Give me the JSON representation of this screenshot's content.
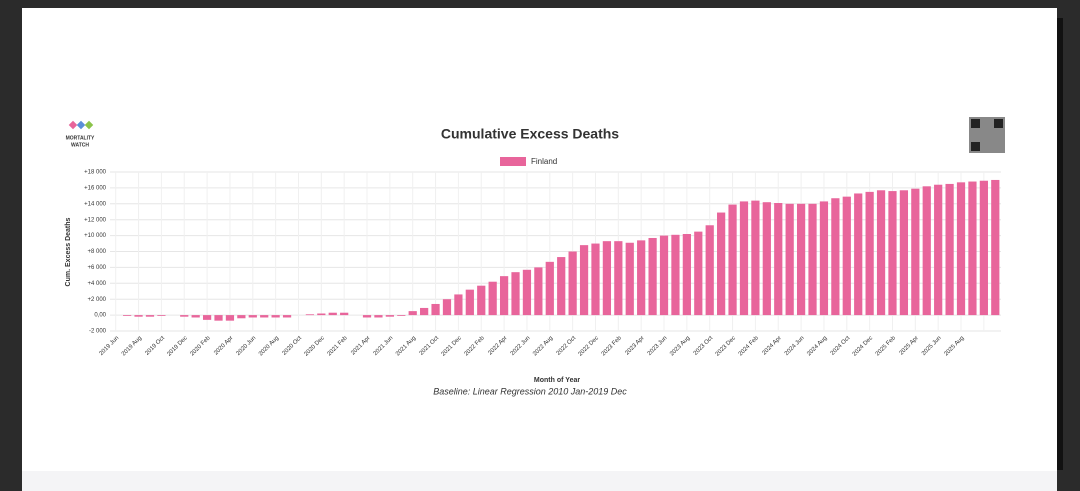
{
  "chart_data": {
    "type": "bar",
    "title": "Cumulative Excess Deaths",
    "logo_text": [
      "MORTALITY",
      "WATCH"
    ],
    "x_label": "Month of Year",
    "y_label": "Cum. Excess Deaths",
    "caption": "Baseline: Linear Regression 2010 Jan-2019 Dec",
    "categories": [
      "2019 Jun",
      null,
      "2019 Aug",
      null,
      "2019 Oct",
      null,
      "2019 Dec",
      null,
      "2020 Feb",
      null,
      "2020 Apr",
      null,
      "2020 Jun",
      null,
      "2020 Aug",
      null,
      "2020 Oct",
      null,
      "2020 Dec",
      null,
      "2021 Feb",
      null,
      "2021 Apr",
      null,
      "2021 Jun",
      null,
      "2021 Aug",
      null,
      "2021 Oct",
      null,
      "2021 Dec",
      null,
      "2022 Feb",
      null,
      "2022 Apr",
      null,
      "2022 Jun",
      null,
      "2022 Aug",
      null,
      "2022 Oct",
      null,
      "2022 Dec",
      null,
      "2023 Feb",
      null,
      "2023 Apr",
      null,
      "2023 Jun",
      null,
      "2023 Aug",
      null,
      "2023 Oct",
      null,
      "2023 Dec",
      null,
      "2024 Feb",
      null,
      "2024 Apr",
      null,
      "2024 Jun",
      null,
      "2024 Aug",
      null,
      "2024 Oct",
      null,
      "2024 Dec",
      null,
      "2025 Feb",
      null,
      "2025 Apr",
      null,
      "2025 Jun",
      null,
      "2025 Aug",
      null,
      null,
      null
    ],
    "series": [
      {
        "name": "Finland",
        "color": "#e8659b",
        "values": [
          0,
          -100,
          -200,
          -200,
          -100,
          0,
          -200,
          -300,
          -600,
          -700,
          -700,
          -400,
          -300,
          -300,
          -300,
          -300,
          0,
          100,
          200,
          300,
          300,
          0,
          -300,
          -300,
          -200,
          -100,
          500,
          900,
          1400,
          2000,
          2600,
          3200,
          3700,
          4200,
          4900,
          5400,
          5700,
          6000,
          6700,
          7300,
          8000,
          8800,
          9000,
          9300,
          9300,
          9100,
          9400,
          9700,
          10000,
          10100,
          10200,
          10500,
          11300,
          12900,
          13900,
          14300,
          14400,
          14200,
          14100,
          14000,
          14000,
          14000,
          14300,
          14700,
          14900,
          15300,
          15500,
          15700,
          15600,
          15700,
          15900,
          16200,
          16400,
          16500,
          16700,
          16800,
          16900,
          17000
        ]
      }
    ],
    "ylim": [
      -2000,
      18000
    ],
    "yticks": [
      {
        "value": -2000,
        "label": "-2 000"
      },
      {
        "value": 0,
        "label": "0,00"
      },
      {
        "value": 2000,
        "label": "+2 000"
      },
      {
        "value": 4000,
        "label": "+4 000"
      },
      {
        "value": 6000,
        "label": "+6 000"
      },
      {
        "value": 8000,
        "label": "+8 000"
      },
      {
        "value": 10000,
        "label": "+10 000"
      },
      {
        "value": 12000,
        "label": "+12 000"
      },
      {
        "value": 14000,
        "label": "+14 000"
      },
      {
        "value": 16000,
        "label": "+16 000"
      },
      {
        "value": 18000,
        "label": "+18 000"
      }
    ],
    "grid": true
  }
}
